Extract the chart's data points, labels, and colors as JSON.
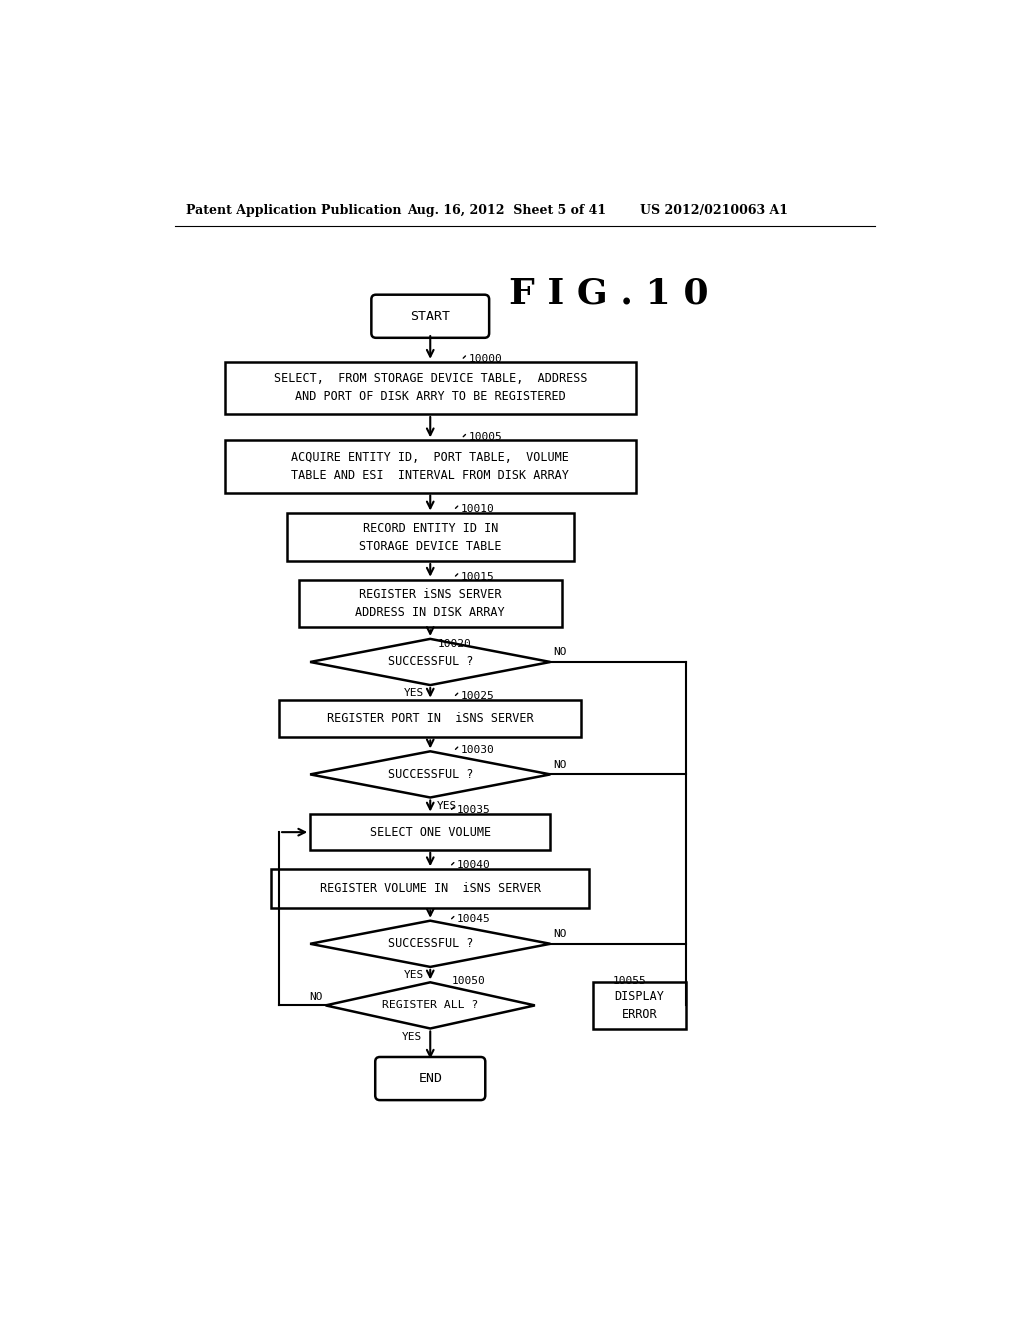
{
  "header_left": "Patent Application Publication",
  "header_mid": "Aug. 16, 2012  Sheet 5 of 41",
  "header_right": "US 2012/0210063 A1",
  "fig_title": "F I G . 1 0",
  "bg_color": "#ffffff"
}
